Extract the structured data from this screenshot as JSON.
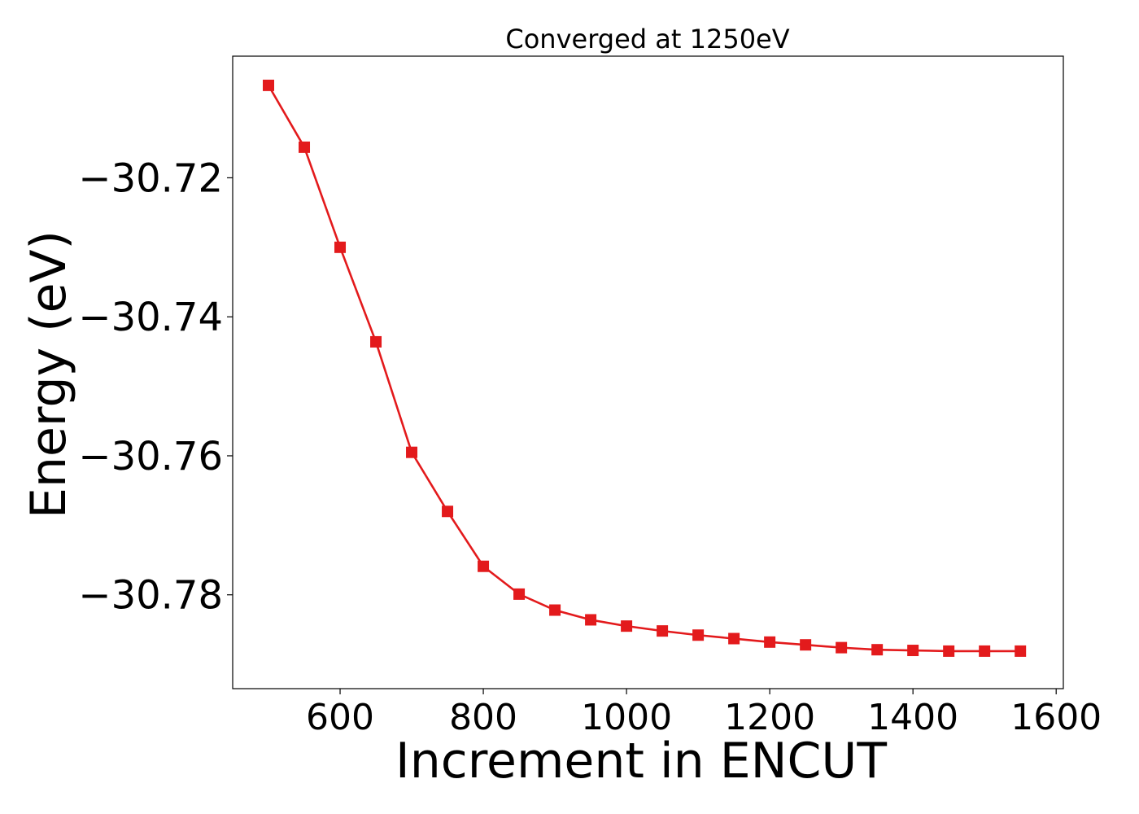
{
  "chart_data": {
    "type": "line",
    "title": "Converged at 1250eV",
    "xlabel": "Increment in ENCUT",
    "ylabel": "Energy (eV)",
    "xlim": [
      450,
      1610
    ],
    "ylim": [
      -30.7935,
      -30.7025
    ],
    "xticks": [
      600,
      800,
      1000,
      1200,
      1400,
      1600
    ],
    "xtick_labels": [
      "600",
      "800",
      "1000",
      "1200",
      "1400",
      "1600"
    ],
    "yticks": [
      -30.72,
      -30.74,
      -30.76,
      -30.78
    ],
    "ytick_labels": [
      "−30.72",
      "−30.74",
      "−30.76",
      "−30.78"
    ],
    "grid": false,
    "series": [
      {
        "color": "#e31a1c",
        "marker": "square",
        "x": [
          500,
          550,
          600,
          650,
          700,
          750,
          800,
          850,
          900,
          950,
          1000,
          1050,
          1100,
          1150,
          1200,
          1250,
          1300,
          1350,
          1400,
          1450,
          1500,
          1550
        ],
        "y": [
          -30.7067,
          -30.7156,
          -30.73,
          -30.7436,
          -30.7595,
          -30.768,
          -30.7759,
          -30.7799,
          -30.7822,
          -30.7836,
          -30.7845,
          -30.7852,
          -30.7858,
          -30.7863,
          -30.7868,
          -30.7872,
          -30.7876,
          -30.7879,
          -30.788,
          -30.7881,
          -30.7881,
          -30.7881
        ]
      }
    ]
  }
}
